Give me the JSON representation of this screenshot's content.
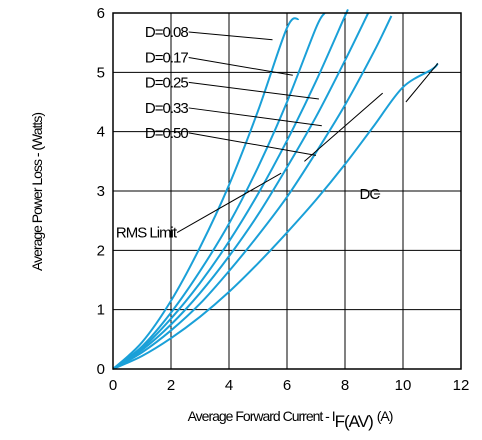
{
  "chart_data": {
    "type": "line",
    "xlabel": "Average Forward Current - I",
    "xlabel_sub": "F(AV)",
    "xlabel_unit": "(A)",
    "ylabel": "Average Power Loss - (Watts)",
    "xlim": [
      0,
      12
    ],
    "ylim": [
      0,
      6
    ],
    "x_ticks": [
      0,
      2,
      4,
      6,
      8,
      10,
      12
    ],
    "y_ticks": [
      0,
      1,
      2,
      3,
      4,
      5,
      6
    ],
    "grid": true,
    "series_color": "#1aa0d8",
    "series": [
      {
        "name": "D=0.08",
        "points": [
          [
            0,
            0
          ],
          [
            1,
            0.45
          ],
          [
            2,
            1.15
          ],
          [
            3,
            2.05
          ],
          [
            4,
            3.1
          ],
          [
            5,
            4.35
          ],
          [
            6,
            5.75
          ],
          [
            6.4,
            5.9
          ]
        ]
      },
      {
        "name": "D=0.17",
        "points": [
          [
            0,
            0
          ],
          [
            1,
            0.38
          ],
          [
            2,
            0.95
          ],
          [
            3,
            1.65
          ],
          [
            4,
            2.45
          ],
          [
            5,
            3.4
          ],
          [
            6,
            4.5
          ],
          [
            7,
            5.75
          ],
          [
            7.3,
            6.0
          ]
        ]
      },
      {
        "name": "D=0.25",
        "points": [
          [
            0,
            0
          ],
          [
            1,
            0.35
          ],
          [
            2,
            0.85
          ],
          [
            3,
            1.45
          ],
          [
            4,
            2.15
          ],
          [
            5,
            2.95
          ],
          [
            6,
            3.85
          ],
          [
            7,
            4.85
          ],
          [
            8,
            5.95
          ],
          [
            8.05,
            6.0
          ]
        ]
      },
      {
        "name": "D=0.33",
        "points": [
          [
            0,
            0
          ],
          [
            1,
            0.32
          ],
          [
            2,
            0.75
          ],
          [
            3,
            1.28
          ],
          [
            4,
            1.9
          ],
          [
            5,
            2.6
          ],
          [
            6,
            3.4
          ],
          [
            7,
            4.25
          ],
          [
            8,
            5.2
          ],
          [
            8.8,
            6.0
          ]
        ]
      },
      {
        "name": "D=0.50",
        "points": [
          [
            0,
            0
          ],
          [
            1,
            0.28
          ],
          [
            2,
            0.65
          ],
          [
            3,
            1.1
          ],
          [
            4,
            1.65
          ],
          [
            5,
            2.25
          ],
          [
            6,
            2.9
          ],
          [
            7,
            3.65
          ],
          [
            8,
            4.45
          ],
          [
            9,
            5.35
          ],
          [
            9.6,
            5.95
          ]
        ]
      },
      {
        "name": "DC",
        "points": [
          [
            0,
            0
          ],
          [
            1,
            0.22
          ],
          [
            2,
            0.52
          ],
          [
            3,
            0.88
          ],
          [
            4,
            1.3
          ],
          [
            5,
            1.78
          ],
          [
            6,
            2.3
          ],
          [
            7,
            2.85
          ],
          [
            8,
            3.45
          ],
          [
            9,
            4.1
          ],
          [
            10,
            4.75
          ],
          [
            11,
            5.05
          ],
          [
            11.2,
            5.15
          ]
        ]
      }
    ],
    "annotations": [
      {
        "label": "D=0.08",
        "text_at": [
          1.1,
          5.68
        ],
        "arrow_to": [
          5.5,
          5.55
        ]
      },
      {
        "label": "D=0.17",
        "text_at": [
          1.1,
          5.25
        ],
        "arrow_to": [
          6.2,
          4.95
        ]
      },
      {
        "label": "D=0.25",
        "text_at": [
          1.1,
          4.83
        ],
        "arrow_to": [
          7.1,
          4.55
        ]
      },
      {
        "label": "D=0.33",
        "text_at": [
          1.1,
          4.4
        ],
        "arrow_to": [
          7.2,
          4.1
        ]
      },
      {
        "label": "D=0.50",
        "text_at": [
          1.1,
          3.98
        ],
        "arrow_to": [
          7.0,
          3.6
        ]
      },
      {
        "label": "DC",
        "text_at": [
          8.5,
          2.95
        ],
        "arrow_to": [
          9.0,
          2.95
        ]
      },
      {
        "label": "RMS Limit",
        "text_at": [
          0.1,
          2.3
        ],
        "arrow_to": [
          5.8,
          3.3
        ]
      }
    ],
    "rms_limit_lines": [
      [
        [
          6.6,
          3.5
        ],
        [
          9.3,
          4.65
        ]
      ],
      [
        [
          10.1,
          4.5
        ],
        [
          11.2,
          5.15
        ]
      ]
    ]
  }
}
